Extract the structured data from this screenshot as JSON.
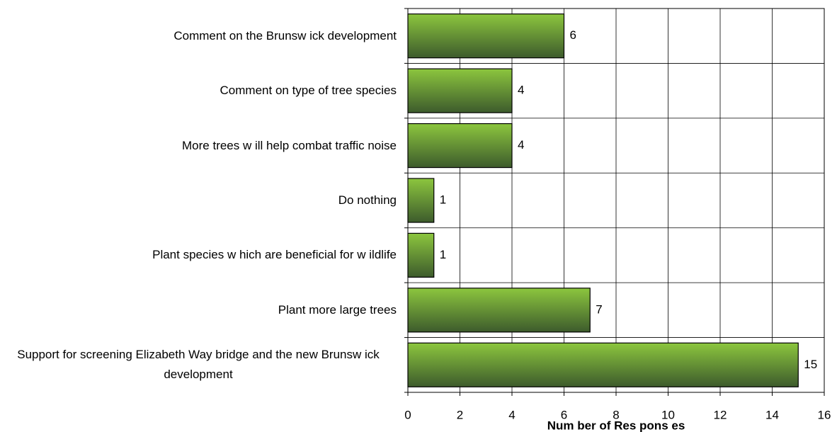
{
  "chart_data": {
    "type": "bar",
    "orientation": "horizontal",
    "categories": [
      "Comment on the Brunsw ick development",
      "Comment on type of tree species",
      "More trees w ill help combat traffic noise",
      "Do nothing",
      "Plant species w hich are beneficial for w ildlife",
      "Plant more large trees",
      "Support for screening Elizabeth Way bridge and the new Brunsw ick development"
    ],
    "values": [
      6,
      4,
      4,
      1,
      1,
      7,
      15
    ],
    "xlabel": "Num ber of Res pons es",
    "xlim": [
      0,
      16
    ],
    "xticks": [
      0,
      2,
      4,
      6,
      8,
      10,
      12,
      14,
      16
    ],
    "color": [
      "#8cc63e",
      "#3d5b2c"
    ],
    "grid": true,
    "data_labels": true
  }
}
